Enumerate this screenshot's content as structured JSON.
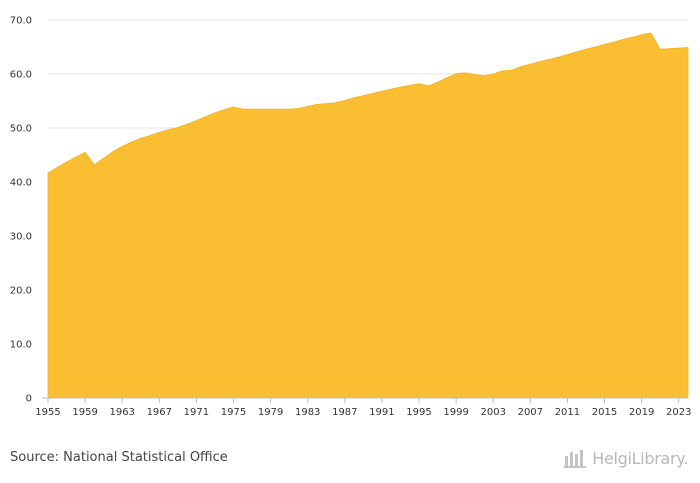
{
  "chart_data": {
    "type": "area",
    "title": "",
    "xlabel": "",
    "ylabel": "",
    "ylim": [
      0,
      70
    ],
    "yticks": [
      "0",
      "10.0",
      "20.0",
      "30.0",
      "40.0",
      "50.0",
      "60.0",
      "70.0"
    ],
    "yticks_values": [
      0,
      10,
      20,
      30,
      40,
      50,
      60,
      70
    ],
    "xlim": [
      1955,
      2024
    ],
    "xtick_labels": [
      "1955",
      "1959",
      "1963",
      "1967",
      "1971",
      "1975",
      "1979",
      "1983",
      "1987",
      "1991",
      "1995",
      "1999",
      "2003",
      "2007",
      "2011",
      "2015",
      "2019",
      "2023"
    ],
    "grid": true,
    "color": "#F9BE32",
    "x": [
      1955,
      1956,
      1957,
      1958,
      1959,
      1960,
      1961,
      1962,
      1963,
      1964,
      1965,
      1966,
      1967,
      1968,
      1969,
      1970,
      1971,
      1972,
      1973,
      1974,
      1975,
      1976,
      1977,
      1978,
      1979,
      1980,
      1981,
      1982,
      1983,
      1984,
      1985,
      1986,
      1987,
      1988,
      1989,
      1990,
      1991,
      1992,
      1993,
      1994,
      1995,
      1996,
      1997,
      1998,
      1999,
      2000,
      2001,
      2002,
      2003,
      2004,
      2005,
      2006,
      2007,
      2008,
      2009,
      2010,
      2011,
      2012,
      2013,
      2014,
      2015,
      2016,
      2017,
      2018,
      2019,
      2020,
      2021,
      2022,
      2023,
      2024
    ],
    "values": [
      41.7,
      42.7,
      43.7,
      44.6,
      45.5,
      43.2,
      44.4,
      45.6,
      46.6,
      47.4,
      48.1,
      48.6,
      49.2,
      49.7,
      50.1,
      50.7,
      51.4,
      52.1,
      52.8,
      53.4,
      53.9,
      53.5,
      53.5,
      53.5,
      53.5,
      53.5,
      53.5,
      53.6,
      54.0,
      54.4,
      54.5,
      54.7,
      55.1,
      55.6,
      56.0,
      56.4,
      56.8,
      57.2,
      57.6,
      57.9,
      58.2,
      57.8,
      58.5,
      59.3,
      60.1,
      60.2,
      59.9,
      59.7,
      60.0,
      60.6,
      60.7,
      61.4,
      61.8,
      62.3,
      62.7,
      63.1,
      63.6,
      64.1,
      64.6,
      65.0,
      65.5,
      65.9,
      66.4,
      66.8,
      67.3,
      67.6,
      64.6,
      64.7,
      64.8,
      64.9
    ]
  },
  "footer": {
    "source": "Source: National Statistical Office",
    "brand": "HelgiLibrary.",
    "brand_icon": "building-icon"
  }
}
